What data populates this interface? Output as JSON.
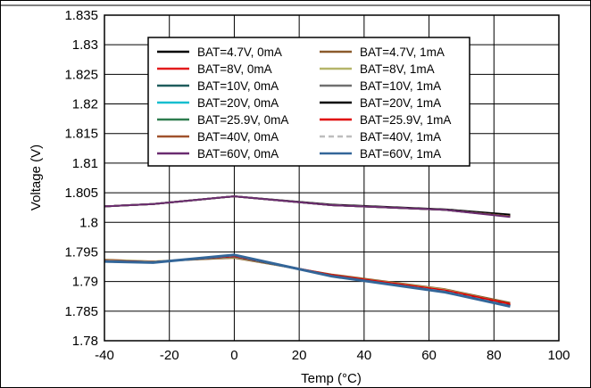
{
  "chart_data": {
    "type": "line",
    "title": "",
    "xlabel": "Temp (°C)",
    "ylabel": "Voltage (V)",
    "xlim": [
      -40,
      100
    ],
    "ylim": [
      1.78,
      1.835
    ],
    "xticks": [
      -40,
      -20,
      0,
      20,
      40,
      60,
      80,
      100
    ],
    "xtick_labels": [
      "-40",
      "-20",
      "0",
      "20",
      "40",
      "60",
      "80",
      "100"
    ],
    "yticks": [
      1.78,
      1.785,
      1.79,
      1.795,
      1.8,
      1.805,
      1.81,
      1.815,
      1.82,
      1.825,
      1.83,
      1.835
    ],
    "ytick_labels": [
      "1.78",
      "1.785",
      "1.79",
      "1.795",
      "1.8",
      "1.805",
      "1.81",
      "1.815",
      "1.82",
      "1.825",
      "1.83",
      "1.835"
    ],
    "grid": true,
    "legend_position": "top",
    "x": [
      -40,
      -25,
      0,
      30,
      65,
      85
    ],
    "series": [
      {
        "name": "BAT=4.7V, 0mA",
        "color": "#000000",
        "dash": "solid",
        "values": [
          1.8027,
          1.8031,
          1.8044,
          1.803,
          1.8022,
          1.8013
        ]
      },
      {
        "name": "BAT=8V, 0mA",
        "color": "#e31a1c",
        "dash": "solid",
        "values": [
          1.8027,
          1.8031,
          1.8044,
          1.8029,
          1.8021,
          1.801
        ]
      },
      {
        "name": "BAT=10V, 0mA",
        "color": "#1f5c5c",
        "dash": "solid",
        "values": [
          1.8027,
          1.8031,
          1.8044,
          1.8029,
          1.8021,
          1.801
        ]
      },
      {
        "name": "BAT=20V, 0mA",
        "color": "#17becf",
        "dash": "solid",
        "values": [
          1.8027,
          1.8031,
          1.8044,
          1.8029,
          1.8021,
          1.801
        ]
      },
      {
        "name": "BAT=25.9V, 0mA",
        "color": "#2e7d4f",
        "dash": "solid",
        "values": [
          1.8027,
          1.8031,
          1.8044,
          1.8029,
          1.8021,
          1.801
        ]
      },
      {
        "name": "BAT=40V, 0mA",
        "color": "#a0522d",
        "dash": "solid",
        "values": [
          1.8027,
          1.8031,
          1.8044,
          1.8029,
          1.8021,
          1.801
        ]
      },
      {
        "name": "BAT=60V, 0mA",
        "color": "#6a2c70",
        "dash": "solid",
        "values": [
          1.8027,
          1.8031,
          1.8044,
          1.8029,
          1.8021,
          1.8009
        ]
      },
      {
        "name": "BAT=4.7V, 1mA",
        "color": "#8b5a2b",
        "dash": "solid",
        "values": [
          1.7937,
          1.7934,
          1.794,
          1.7912,
          1.7887,
          1.7864
        ]
      },
      {
        "name": "BAT=8V, 1mA",
        "color": "#b5b56a",
        "dash": "solid",
        "values": [
          1.7936,
          1.7934,
          1.7941,
          1.7911,
          1.7886,
          1.7862
        ]
      },
      {
        "name": "BAT=10V, 1mA",
        "color": "#707070",
        "dash": "solid",
        "values": [
          1.7935,
          1.7933,
          1.7942,
          1.791,
          1.7884,
          1.786
        ]
      },
      {
        "name": "BAT=20V, 1mA",
        "color": "#000000",
        "dash": "solid",
        "values": [
          1.7935,
          1.7933,
          1.7943,
          1.791,
          1.7884,
          1.786
        ]
      },
      {
        "name": "BAT=25.9V, 1mA",
        "color": "#e00000",
        "dash": "solid",
        "values": [
          1.7935,
          1.7933,
          1.7943,
          1.7911,
          1.7885,
          1.7862
        ]
      },
      {
        "name": "BAT=40V, 1mA",
        "color": "#bdbdbd",
        "dash": "dashed",
        "values": [
          1.7934,
          1.7932,
          1.7944,
          1.7909,
          1.7883,
          1.7859
        ]
      },
      {
        "name": "BAT=60V, 1mA",
        "color": "#336699",
        "dash": "solid",
        "values": [
          1.7934,
          1.7932,
          1.7945,
          1.7909,
          1.7882,
          1.7858
        ]
      }
    ]
  }
}
